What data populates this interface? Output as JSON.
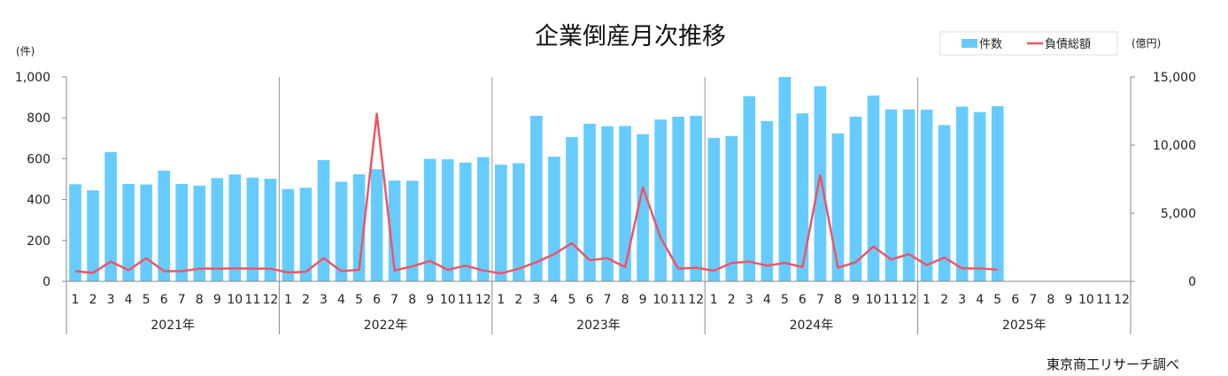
{
  "chart_data": {
    "type": "bar",
    "title": "企業倒産月次推移",
    "source": "東京商工リサーチ調べ",
    "left_unit": "(件)",
    "right_unit": "(億円)",
    "legend": {
      "placement": "top-right",
      "bar_label": "件数",
      "line_label": "負債総額"
    },
    "colors": {
      "bar": "#66CCFF",
      "line": "#EE5566",
      "axis": "#888888",
      "grid": "#999999"
    },
    "left_axis": {
      "ylim": [
        0,
        1000
      ],
      "ticks": [
        "0",
        "200",
        "400",
        "600",
        "800",
        "1,000"
      ]
    },
    "right_axis": {
      "ylim": [
        0,
        15000
      ],
      "ticks": [
        "0",
        "5,000",
        "10,000",
        "15,000"
      ]
    },
    "month_labels": [
      "1",
      "2",
      "3",
      "4",
      "5",
      "6",
      "7",
      "8",
      "9",
      "10",
      "11",
      "12"
    ],
    "years": [
      "2021年",
      "2022年",
      "2023年",
      "2024年",
      "2025年"
    ],
    "series": [
      {
        "name": "件数",
        "axis": "left",
        "values": [
          475,
          445,
          632,
          476,
          474,
          542,
          476,
          468,
          505,
          523,
          508,
          502,
          452,
          458,
          593,
          487,
          524,
          549,
          493,
          492,
          599,
          597,
          581,
          608,
          571,
          578,
          810,
          610,
          706,
          771,
          759,
          760,
          720,
          792,
          806,
          810,
          702,
          711,
          906,
          784,
          1000,
          822,
          955,
          724,
          806,
          909,
          841,
          841,
          840,
          765,
          855,
          828,
          857
        ]
      },
      {
        "name": "負債総額",
        "axis": "right",
        "values": [
          750,
          620,
          1450,
          820,
          1700,
          750,
          750,
          930,
          930,
          950,
          930,
          930,
          650,
          700,
          1700,
          750,
          850,
          12300,
          800,
          1100,
          1500,
          850,
          1150,
          800,
          580,
          930,
          1400,
          2000,
          2800,
          1550,
          1700,
          1050,
          6900,
          3200,
          930,
          1000,
          780,
          1350,
          1450,
          1150,
          1350,
          1050,
          7800,
          1000,
          1400,
          2550,
          1600,
          2000,
          1200,
          1750,
          950,
          950,
          850
        ]
      }
    ]
  }
}
